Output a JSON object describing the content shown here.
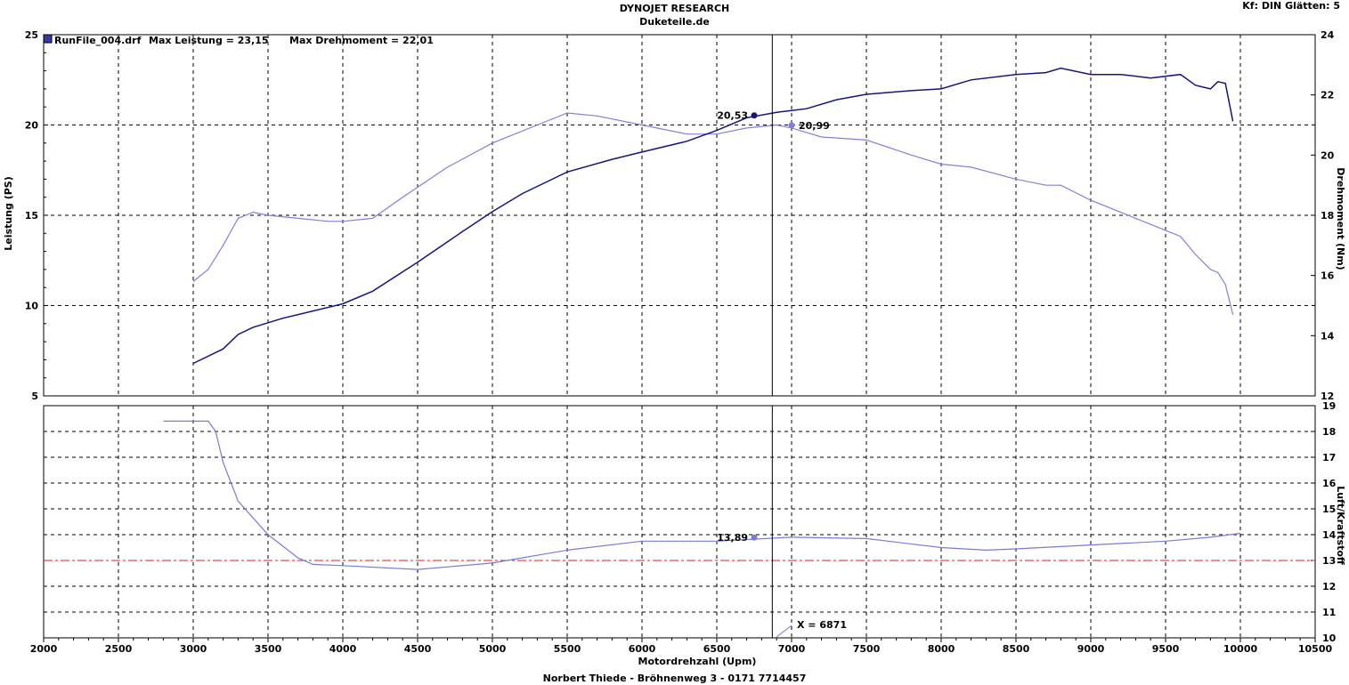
{
  "header": {
    "title": "DYNOJET RESEARCH",
    "subtitle": "Duketeile.de",
    "settings": "Kf: DIN  Glätten: 5",
    "footer": "Norbert Thiede - Bröhnenweg 3 - 0171 7714457"
  },
  "legend": {
    "runfile": "RunFile_004.drf",
    "max_power": "Max Leistung = 23,15",
    "max_torque": "Max Drehmoment = 22,01"
  },
  "cursor": {
    "x_label": "X = 6871"
  },
  "colors": {
    "power": "#16167a",
    "torque": "#8080d8",
    "afr": "#7a7ad8",
    "reference": "#e02020",
    "grid": "#000000"
  },
  "chart_data": [
    {
      "type": "line",
      "xlabel": "Motordrehzahl (Upm)",
      "ylabel": "Leistung (PS)",
      "y2label": "Drehmoment (Nm)",
      "xlim": [
        2000,
        10500
      ],
      "ylim": [
        5,
        25
      ],
      "y2lim": [
        12,
        24
      ],
      "x_ticks": [
        2000,
        2500,
        3000,
        3500,
        4000,
        4500,
        5000,
        5500,
        6000,
        6500,
        7000,
        7500,
        8000,
        8500,
        9000,
        9500,
        10000,
        10500
      ],
      "y_ticks": [
        5,
        10,
        15,
        20,
        25
      ],
      "y2_ticks": [
        12,
        14,
        16,
        18,
        20,
        22,
        24
      ],
      "grid": true,
      "cursor_x": 6871,
      "series": [
        {
          "name": "Leistung",
          "axis": "left",
          "marker": {
            "x": 6750,
            "y": 20.53,
            "label": "20,53"
          },
          "x": [
            3000,
            3200,
            3300,
            3400,
            3600,
            3800,
            4000,
            4200,
            4500,
            4800,
            5000,
            5200,
            5500,
            5800,
            6000,
            6300,
            6500,
            6700,
            6900,
            7100,
            7300,
            7500,
            7800,
            8000,
            8200,
            8500,
            8700,
            8800,
            9000,
            9200,
            9400,
            9600,
            9700,
            9800,
            9850,
            9900,
            9950
          ],
          "y": [
            6.8,
            7.6,
            8.4,
            8.8,
            9.3,
            9.7,
            10.1,
            10.8,
            12.4,
            14.1,
            15.2,
            16.2,
            17.4,
            18.1,
            18.5,
            19.1,
            19.7,
            20.4,
            20.7,
            20.9,
            21.4,
            21.7,
            21.9,
            22.0,
            22.5,
            22.8,
            22.9,
            23.15,
            22.8,
            22.8,
            22.6,
            22.8,
            22.2,
            22.0,
            22.4,
            22.3,
            20.2
          ]
        },
        {
          "name": "Drehmoment",
          "axis": "right",
          "marker": {
            "x": 7000,
            "y": 20.99,
            "label": "20,99"
          },
          "x": [
            3000,
            3100,
            3200,
            3300,
            3400,
            3500,
            3700,
            3900,
            4000,
            4200,
            4400,
            4700,
            5000,
            5300,
            5500,
            5700,
            6000,
            6300,
            6500,
            6700,
            6900,
            7000,
            7200,
            7500,
            7800,
            8000,
            8200,
            8500,
            8700,
            8800,
            9000,
            9200,
            9400,
            9500,
            9600,
            9700,
            9800,
            9850,
            9900,
            9950
          ],
          "y": [
            15.8,
            16.2,
            17.0,
            17.9,
            18.1,
            18.0,
            17.9,
            17.8,
            17.8,
            17.9,
            18.6,
            19.6,
            20.4,
            21.0,
            21.4,
            21.3,
            21.0,
            20.7,
            20.7,
            20.9,
            21.0,
            20.9,
            20.6,
            20.5,
            20.0,
            19.7,
            19.6,
            19.2,
            19.0,
            19.0,
            18.5,
            18.1,
            17.7,
            17.5,
            17.3,
            16.7,
            16.2,
            16.1,
            15.7,
            14.7
          ]
        }
      ]
    },
    {
      "type": "line",
      "xlabel": "Motordrehzahl (Upm)",
      "y2label": "Luft/Kraftstoff",
      "xlim": [
        2000,
        10500
      ],
      "y2lim": [
        10,
        19
      ],
      "y2_ticks": [
        10,
        11,
        12,
        13,
        14,
        15,
        16,
        17,
        18,
        19
      ],
      "reference_line": 13,
      "grid": true,
      "series": [
        {
          "name": "Luft/Kraftstoff",
          "axis": "right",
          "marker": {
            "x": 6750,
            "y": 13.89,
            "label": "13,89"
          },
          "x": [
            2800,
            3100,
            3150,
            3200,
            3300,
            3500,
            3700,
            3800,
            4000,
            4500,
            5000,
            5500,
            6000,
            6500,
            7000,
            7500,
            8000,
            8300,
            8500,
            9000,
            9500,
            9800,
            10000
          ],
          "y": [
            18.4,
            18.4,
            18.0,
            16.8,
            15.3,
            14.0,
            13.1,
            12.85,
            12.8,
            12.65,
            12.9,
            13.4,
            13.75,
            13.75,
            13.9,
            13.85,
            13.5,
            13.4,
            13.45,
            13.6,
            13.75,
            13.9,
            14.05
          ]
        }
      ]
    }
  ]
}
